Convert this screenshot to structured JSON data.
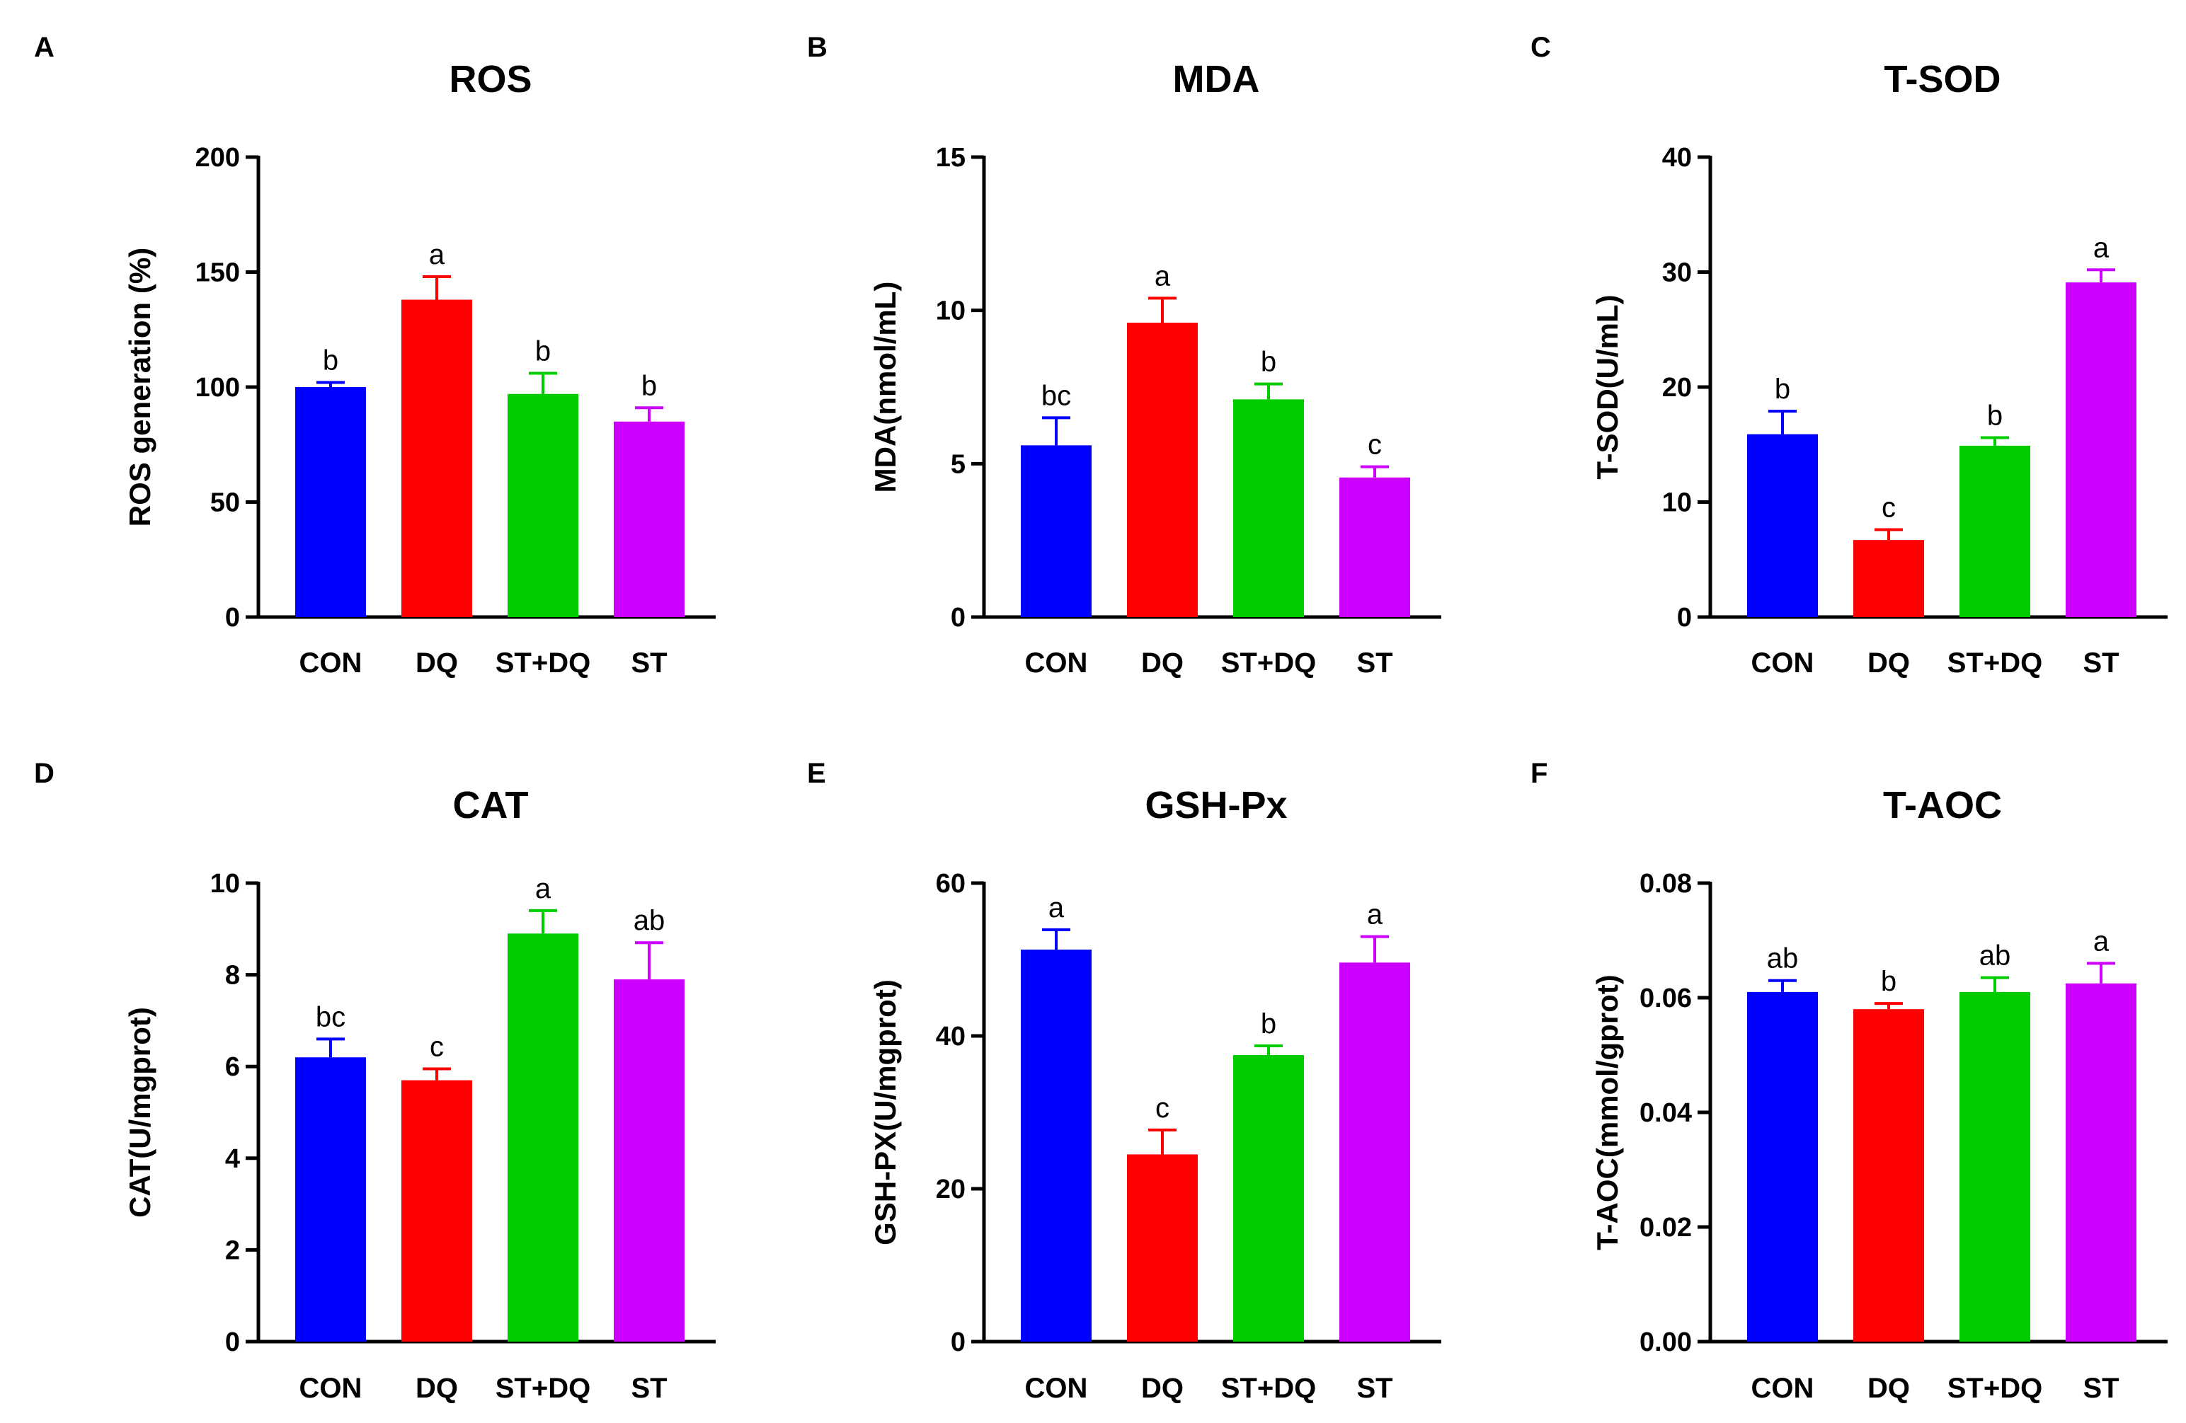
{
  "chart_data": [
    {
      "panel": "A",
      "type": "bar",
      "title": "ROS",
      "xlabel": "",
      "ylabel": "ROS generation (%)",
      "categories": [
        "CON",
        "DQ",
        "ST+DQ",
        "ST"
      ],
      "values": [
        100,
        138,
        97,
        85
      ],
      "errors": [
        2,
        10,
        9,
        6
      ],
      "significance": [
        "b",
        "a",
        "b",
        "b"
      ],
      "colors": [
        "#0000ff",
        "#ff0000",
        "#00cc00",
        "#cc00ff"
      ],
      "ylim": [
        0,
        200
      ],
      "yticks": [
        0,
        50,
        100,
        150,
        200
      ],
      "ytick_labels": [
        "0",
        "50",
        "100",
        "150",
        "200"
      ]
    },
    {
      "panel": "B",
      "type": "bar",
      "title": "MDA",
      "xlabel": "",
      "ylabel": "MDA(nmol/mL)",
      "categories": [
        "CON",
        "DQ",
        "ST+DQ",
        "ST"
      ],
      "values": [
        5.6,
        9.6,
        7.1,
        4.55
      ],
      "errors": [
        0.9,
        0.8,
        0.5,
        0.35
      ],
      "significance": [
        "bc",
        "a",
        "b",
        "c"
      ],
      "colors": [
        "#0000ff",
        "#ff0000",
        "#00cc00",
        "#cc00ff"
      ],
      "ylim": [
        0,
        15
      ],
      "yticks": [
        0,
        5,
        10,
        15
      ],
      "ytick_labels": [
        "0",
        "5",
        "10",
        "15"
      ]
    },
    {
      "panel": "C",
      "type": "bar",
      "title": "T-SOD",
      "xlabel": "",
      "ylabel": "T-SOD(U/mL)",
      "categories": [
        "CON",
        "DQ",
        "ST+DQ",
        "ST"
      ],
      "values": [
        15.9,
        6.7,
        14.9,
        29.1
      ],
      "errors": [
        2.0,
        0.9,
        0.7,
        1.1
      ],
      "significance": [
        "b",
        "c",
        "b",
        "a"
      ],
      "colors": [
        "#0000ff",
        "#ff0000",
        "#00cc00",
        "#cc00ff"
      ],
      "ylim": [
        0,
        40
      ],
      "yticks": [
        0,
        10,
        20,
        30,
        40
      ],
      "ytick_labels": [
        "0",
        "10",
        "20",
        "30",
        "40"
      ]
    },
    {
      "panel": "D",
      "type": "bar",
      "title": "CAT",
      "xlabel": "",
      "ylabel": "CAT(U/mgprot)",
      "categories": [
        "CON",
        "DQ",
        "ST+DQ",
        "ST"
      ],
      "values": [
        6.2,
        5.7,
        8.9,
        7.9
      ],
      "errors": [
        0.4,
        0.25,
        0.5,
        0.8
      ],
      "significance": [
        "bc",
        "c",
        "a",
        "ab"
      ],
      "colors": [
        "#0000ff",
        "#ff0000",
        "#00cc00",
        "#cc00ff"
      ],
      "ylim": [
        0,
        10
      ],
      "yticks": [
        0,
        2,
        4,
        6,
        8,
        10
      ],
      "ytick_labels": [
        "0",
        "2",
        "4",
        "6",
        "8",
        "10"
      ]
    },
    {
      "panel": "E",
      "type": "bar",
      "title": "GSH-Px",
      "xlabel": "",
      "ylabel": "GSH-PX(U/mgprot)",
      "categories": [
        "CON",
        "DQ",
        "ST+DQ",
        "ST"
      ],
      "values": [
        51.3,
        24.5,
        37.5,
        49.6
      ],
      "errors": [
        2.6,
        3.2,
        1.2,
        3.4
      ],
      "significance": [
        "a",
        "c",
        "b",
        "a"
      ],
      "colors": [
        "#0000ff",
        "#ff0000",
        "#00cc00",
        "#cc00ff"
      ],
      "ylim": [
        0,
        60
      ],
      "yticks": [
        0,
        20,
        40,
        60
      ],
      "ytick_labels": [
        "0",
        "20",
        "40",
        "60"
      ]
    },
    {
      "panel": "F",
      "type": "bar",
      "title": "T-AOC",
      "xlabel": "",
      "ylabel": "T-AOC(mmol/gprot)",
      "categories": [
        "CON",
        "DQ",
        "ST+DQ",
        "ST"
      ],
      "values": [
        0.061,
        0.058,
        0.061,
        0.0625
      ],
      "errors": [
        0.002,
        0.001,
        0.0025,
        0.0035
      ],
      "significance": [
        "ab",
        "b",
        "ab",
        "a"
      ],
      "colors": [
        "#0000ff",
        "#ff0000",
        "#00cc00",
        "#cc00ff"
      ],
      "ylim": [
        0,
        0.08
      ],
      "yticks": [
        0,
        0.02,
        0.04,
        0.06,
        0.08
      ],
      "ytick_labels": [
        "0.00",
        "0.02",
        "0.04",
        "0.06",
        "0.08"
      ]
    }
  ]
}
